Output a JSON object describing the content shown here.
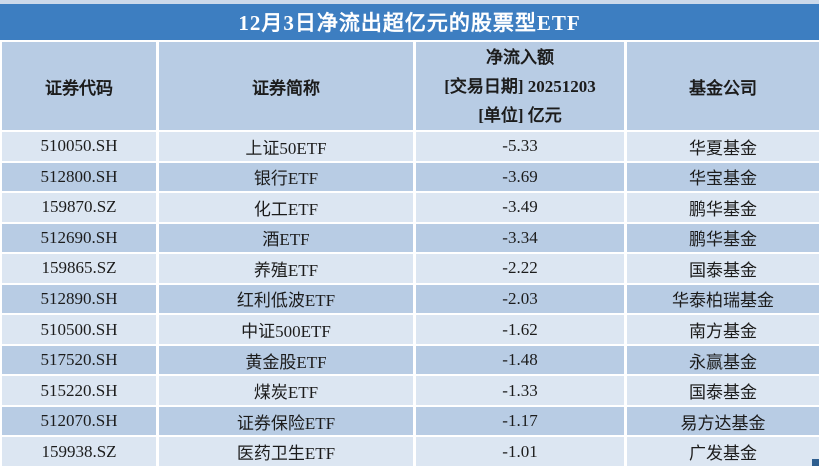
{
  "title": "12月3日净流出超亿元的股票型ETF",
  "header": {
    "code": "证券代码",
    "name": "证券简称",
    "flow_line1": "净流入额",
    "flow_line2": "[交易日期] 20251203",
    "flow_line3": "[单位] 亿元",
    "company": "基金公司"
  },
  "rows": [
    {
      "code": "510050.SH",
      "name": "上证50ETF",
      "value": "-5.33",
      "company": "华夏基金"
    },
    {
      "code": "512800.SH",
      "name": "银行ETF",
      "value": "-3.69",
      "company": "华宝基金"
    },
    {
      "code": "159870.SZ",
      "name": "化工ETF",
      "value": "-3.49",
      "company": "鹏华基金"
    },
    {
      "code": "512690.SH",
      "name": "酒ETF",
      "value": "-3.34",
      "company": "鹏华基金"
    },
    {
      "code": "159865.SZ",
      "name": "养殖ETF",
      "value": "-2.22",
      "company": "国泰基金"
    },
    {
      "code": "512890.SH",
      "name": "红利低波ETF",
      "value": "-2.03",
      "company": "华泰柏瑞基金"
    },
    {
      "code": "510500.SH",
      "name": "中证500ETF",
      "value": "-1.62",
      "company": "南方基金"
    },
    {
      "code": "517520.SH",
      "name": "黄金股ETF",
      "value": "-1.48",
      "company": "永赢基金"
    },
    {
      "code": "515220.SH",
      "name": "煤炭ETF",
      "value": "-1.33",
      "company": "国泰基金"
    },
    {
      "code": "512070.SH",
      "name": "证券保险ETF",
      "value": "-1.17",
      "company": "易方达基金"
    },
    {
      "code": "159938.SZ",
      "name": "医药卫生ETF",
      "value": "-1.01",
      "company": "广发基金"
    }
  ],
  "colors": {
    "title_bg": "#3d7ec1",
    "title_text": "#ffffff",
    "header_bg": "#b8cce4",
    "row_light": "#dce6f2",
    "row_dark": "#b8cce4",
    "top_strip": "#ccd9ea",
    "fill_handle": "#2e5e8f"
  },
  "chart_data": {
    "type": "table",
    "title": "12月3日净流出超亿元的股票型ETF",
    "columns": [
      "证券代码",
      "证券简称",
      "净流入额 [交易日期] 20251203 [单位] 亿元",
      "基金公司"
    ],
    "rows": [
      [
        "510050.SH",
        "上证50ETF",
        -5.33,
        "华夏基金"
      ],
      [
        "512800.SH",
        "银行ETF",
        -3.69,
        "华宝基金"
      ],
      [
        "159870.SZ",
        "化工ETF",
        -3.49,
        "鹏华基金"
      ],
      [
        "512690.SH",
        "酒ETF",
        -3.34,
        "鹏华基金"
      ],
      [
        "159865.SZ",
        "养殖ETF",
        -2.22,
        "国泰基金"
      ],
      [
        "512890.SH",
        "红利低波ETF",
        -2.03,
        "华泰柏瑞基金"
      ],
      [
        "510500.SH",
        "中证500ETF",
        -1.62,
        "南方基金"
      ],
      [
        "517520.SH",
        "黄金股ETF",
        -1.48,
        "永赢基金"
      ],
      [
        "515220.SH",
        "煤炭ETF",
        -1.33,
        "国泰基金"
      ],
      [
        "512070.SH",
        "证券保险ETF",
        -1.17,
        "易方达基金"
      ],
      [
        "159938.SZ",
        "医药卫生ETF",
        -1.01,
        "广发基金"
      ]
    ],
    "unit": "亿元",
    "trade_date": "20251203"
  }
}
